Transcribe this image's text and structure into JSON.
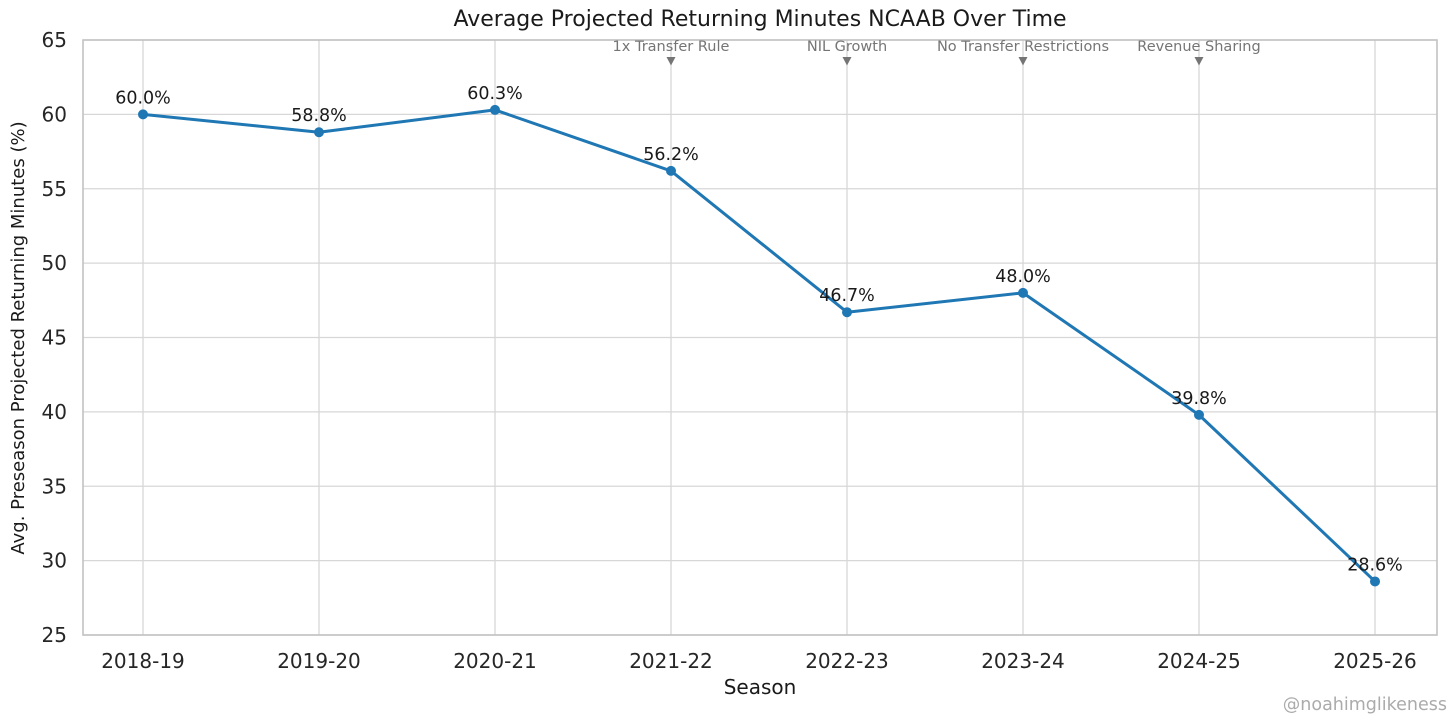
{
  "watermark": "@noahimglikeness",
  "chart_data": {
    "type": "line",
    "title": "Average Projected Returning Minutes NCAAB Over Time",
    "xlabel": "Season",
    "ylabel": "Avg. Preseason Projected Returning Minutes (%)",
    "categories": [
      "2018-19",
      "2019-20",
      "2020-21",
      "2021-22",
      "2022-23",
      "2023-24",
      "2024-25",
      "2025-26"
    ],
    "values": [
      60.0,
      58.8,
      60.3,
      56.2,
      46.7,
      48.0,
      39.8,
      28.6
    ],
    "point_labels": [
      "60.0%",
      "58.8%",
      "60.3%",
      "56.2%",
      "46.7%",
      "48.0%",
      "39.8%",
      "28.6%"
    ],
    "ylim": [
      25,
      65
    ],
    "yticks": [
      25,
      30,
      35,
      40,
      45,
      50,
      55,
      60,
      65
    ],
    "grid": true,
    "legend": "none",
    "annotations": [
      {
        "label": "1x Transfer Rule",
        "category": "2021-22"
      },
      {
        "label": "NIL Growth",
        "category": "2022-23"
      },
      {
        "label": "No Transfer Restrictions",
        "category": "2023-24"
      },
      {
        "label": "Revenue Sharing",
        "category": "2024-25"
      }
    ],
    "colors": {
      "line": "#1f77b4",
      "marker": "#1f77b4",
      "grid": "#d7d7d7",
      "spine": "#c2c2c2",
      "text": "#1a1a1a",
      "tick_label": "#262626",
      "annotation": "#757575",
      "watermark": "#ababab"
    }
  }
}
